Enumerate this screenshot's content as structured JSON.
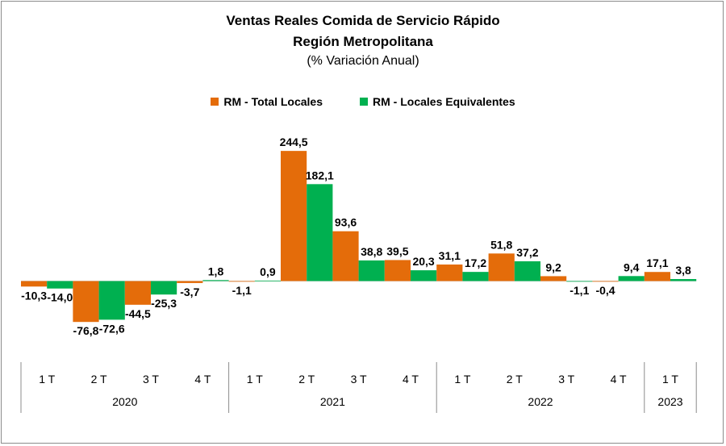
{
  "chart_data": {
    "type": "bar",
    "title": "Ventas Reales Comida de Servicio Rápido",
    "subtitle": "Región Metropolitana",
    "subtitle2": "(% Variación Anual)",
    "legend_position": "top-center",
    "grid": false,
    "categories": [
      "1 T",
      "2 T",
      "3 T",
      "4 T",
      "1 T",
      "2 T",
      "3 T",
      "4 T",
      "1 T",
      "2 T",
      "3 T",
      "4 T",
      "1 T"
    ],
    "years": [
      {
        "label": "2020",
        "quarters": 4
      },
      {
        "label": "2021",
        "quarters": 4
      },
      {
        "label": "2022",
        "quarters": 4
      },
      {
        "label": "2023",
        "quarters": 1
      }
    ],
    "series": [
      {
        "name": "RM - Total Locales",
        "color": "#e46c0a",
        "values": [
          -10.3,
          -76.8,
          -44.5,
          -3.7,
          -1.1,
          244.5,
          93.6,
          39.5,
          31.1,
          51.8,
          9.2,
          -0.4,
          17.1
        ],
        "labels": [
          "-10,3",
          "-76,8",
          "-44,5",
          "-3,7",
          "-1,1",
          "244,5",
          "93,6",
          "39,5",
          "31,1",
          "51,8",
          "9,2",
          "-0,4",
          "17,1"
        ]
      },
      {
        "name": "RM - Locales Equivalentes",
        "color": "#00b050",
        "values": [
          -14.0,
          -72.6,
          -25.3,
          1.8,
          0.9,
          182.1,
          38.8,
          20.3,
          17.2,
          37.2,
          -1.1,
          9.4,
          3.8
        ],
        "labels": [
          "-14,0",
          "-72,6",
          "-25,3",
          "1,8",
          "0,9",
          "182,1",
          "38,8",
          "20,3",
          "17,2",
          "37,2",
          "-1,1",
          "9,4",
          "3,8"
        ]
      }
    ]
  }
}
